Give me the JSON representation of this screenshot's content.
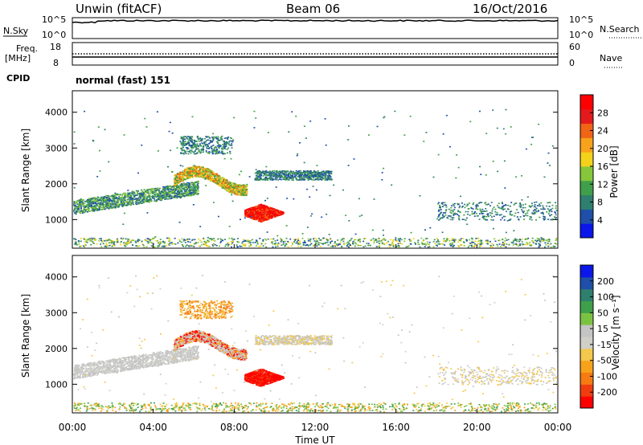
{
  "header": {
    "radar": "Unwin (fitACF)",
    "beam": "Beam 06",
    "date": "16/Oct/2016"
  },
  "top_panels": {
    "nsky_label": "N.Sky",
    "nsky_ticks": [
      "10^5",
      "10^0"
    ],
    "nsearch_label": "N.Search",
    "nsearch_ticks": [
      "10^5",
      "10^0"
    ],
    "freq_label_1": "Freq.",
    "freq_label_2": "[MHz]",
    "freq_ticks": [
      "18",
      "8"
    ],
    "nave_label": "Nave",
    "nave_ticks": [
      "60",
      "0"
    ],
    "cpid_label": "CPID",
    "cpid_value": "normal (fast) 151"
  },
  "colors": {
    "power_scale": [
      "#0a17e8",
      "#1f4fa8",
      "#2f7f6e",
      "#3f9f4a",
      "#86c63a",
      "#f3d21c",
      "#f7a21b",
      "#f06416",
      "#e31a1c",
      "#ff0000"
    ],
    "velocity_scale": [
      "#ff0000",
      "#f03d10",
      "#f57b12",
      "#f7a21b",
      "#f3c84d",
      "#d0d0c8",
      "#c4c4c4",
      "#7cc242",
      "#3f9f4a",
      "#2f7f6e",
      "#1f4fa8",
      "#0a17e8"
    ]
  },
  "chart_data": [
    {
      "type": "heatmap",
      "name": "power",
      "ylabel": "Slant Range [km]",
      "yticks": [
        "1000",
        "2000",
        "3000",
        "4000"
      ],
      "ylim": [
        200,
        4600
      ],
      "colorbar_label": "Power [dB]",
      "colorbar_ticks": [
        "4",
        "8",
        "12",
        "16",
        "20",
        "24",
        "28"
      ],
      "x": {
        "ticks": [
          "00:00",
          "04:00",
          "08:00",
          "12:00",
          "16:00",
          "20:00",
          "00:00"
        ],
        "xlim": [
          0,
          24
        ]
      }
    },
    {
      "type": "heatmap",
      "name": "velocity",
      "ylabel": "Slant Range [km]",
      "yticks": [
        "1000",
        "2000",
        "3000",
        "4000"
      ],
      "ylim": [
        200,
        4600
      ],
      "colorbar_label": "Velocity [m s⁻¹]",
      "colorbar_ticks": [
        "-200",
        "-100",
        "-50",
        "-15",
        "15",
        "50",
        "100",
        "200"
      ],
      "x": {
        "ticks": [
          "00:00",
          "04:00",
          "08:00",
          "12:00",
          "16:00",
          "20:00",
          "00:00"
        ],
        "xlim": [
          0,
          24
        ]
      }
    }
  ],
  "xlabel": "Time UT"
}
